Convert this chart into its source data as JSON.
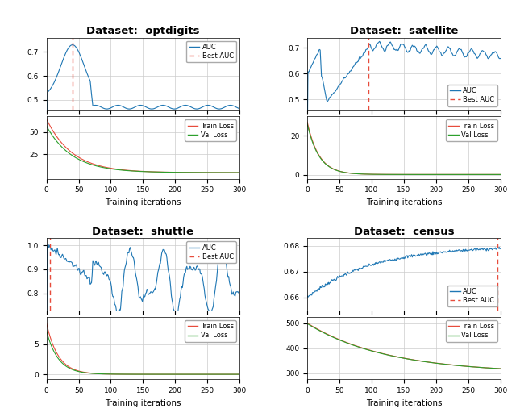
{
  "datasets": [
    "optdigits",
    "satellite",
    "shuttle",
    "census"
  ],
  "titles": [
    "Dataset:  optdigits",
    "Dataset:  satellite",
    "Dataset:  shuttle",
    "Dataset:  census"
  ],
  "best_auc_iter": [
    40,
    95,
    5,
    295
  ],
  "auc_ylims_map": {
    "optdigits": [
      0.46,
      0.76
    ],
    "satellite": [
      0.46,
      0.74
    ],
    "shuttle": [
      0.73,
      1.03
    ],
    "census": [
      0.655,
      0.683
    ]
  },
  "auc_yticks_map": {
    "optdigits": [
      0.5,
      0.6,
      0.7
    ],
    "satellite": [
      0.5,
      0.6,
      0.7
    ],
    "shuttle": [
      0.8,
      0.9,
      1.0
    ],
    "census": [
      0.66,
      0.67,
      0.68
    ]
  },
  "loss_ylims_map": {
    "optdigits": [
      -3,
      68
    ],
    "satellite": [
      -2,
      30
    ],
    "shuttle": [
      -0.8,
      9.5
    ],
    "census": [
      275,
      525
    ]
  },
  "loss_yticks_map": {
    "optdigits": [
      25,
      50
    ],
    "satellite": [
      0,
      20
    ],
    "shuttle": [
      0,
      5
    ],
    "census": [
      300,
      400,
      500
    ]
  },
  "colors": {
    "auc": "#1f77b4",
    "best_auc": "#e74c3c",
    "train_loss": "#e74c3c",
    "val_loss": "#2ca02c",
    "grid": "#cccccc"
  },
  "xlabel": "Training iterations",
  "legend_auc": "AUC",
  "legend_best_auc": "Best AUC",
  "legend_train": "Train Loss",
  "legend_val": "Val Loss",
  "xlim": [
    0,
    300
  ],
  "xticks": [
    0,
    50,
    100,
    150,
    200,
    250,
    300
  ]
}
